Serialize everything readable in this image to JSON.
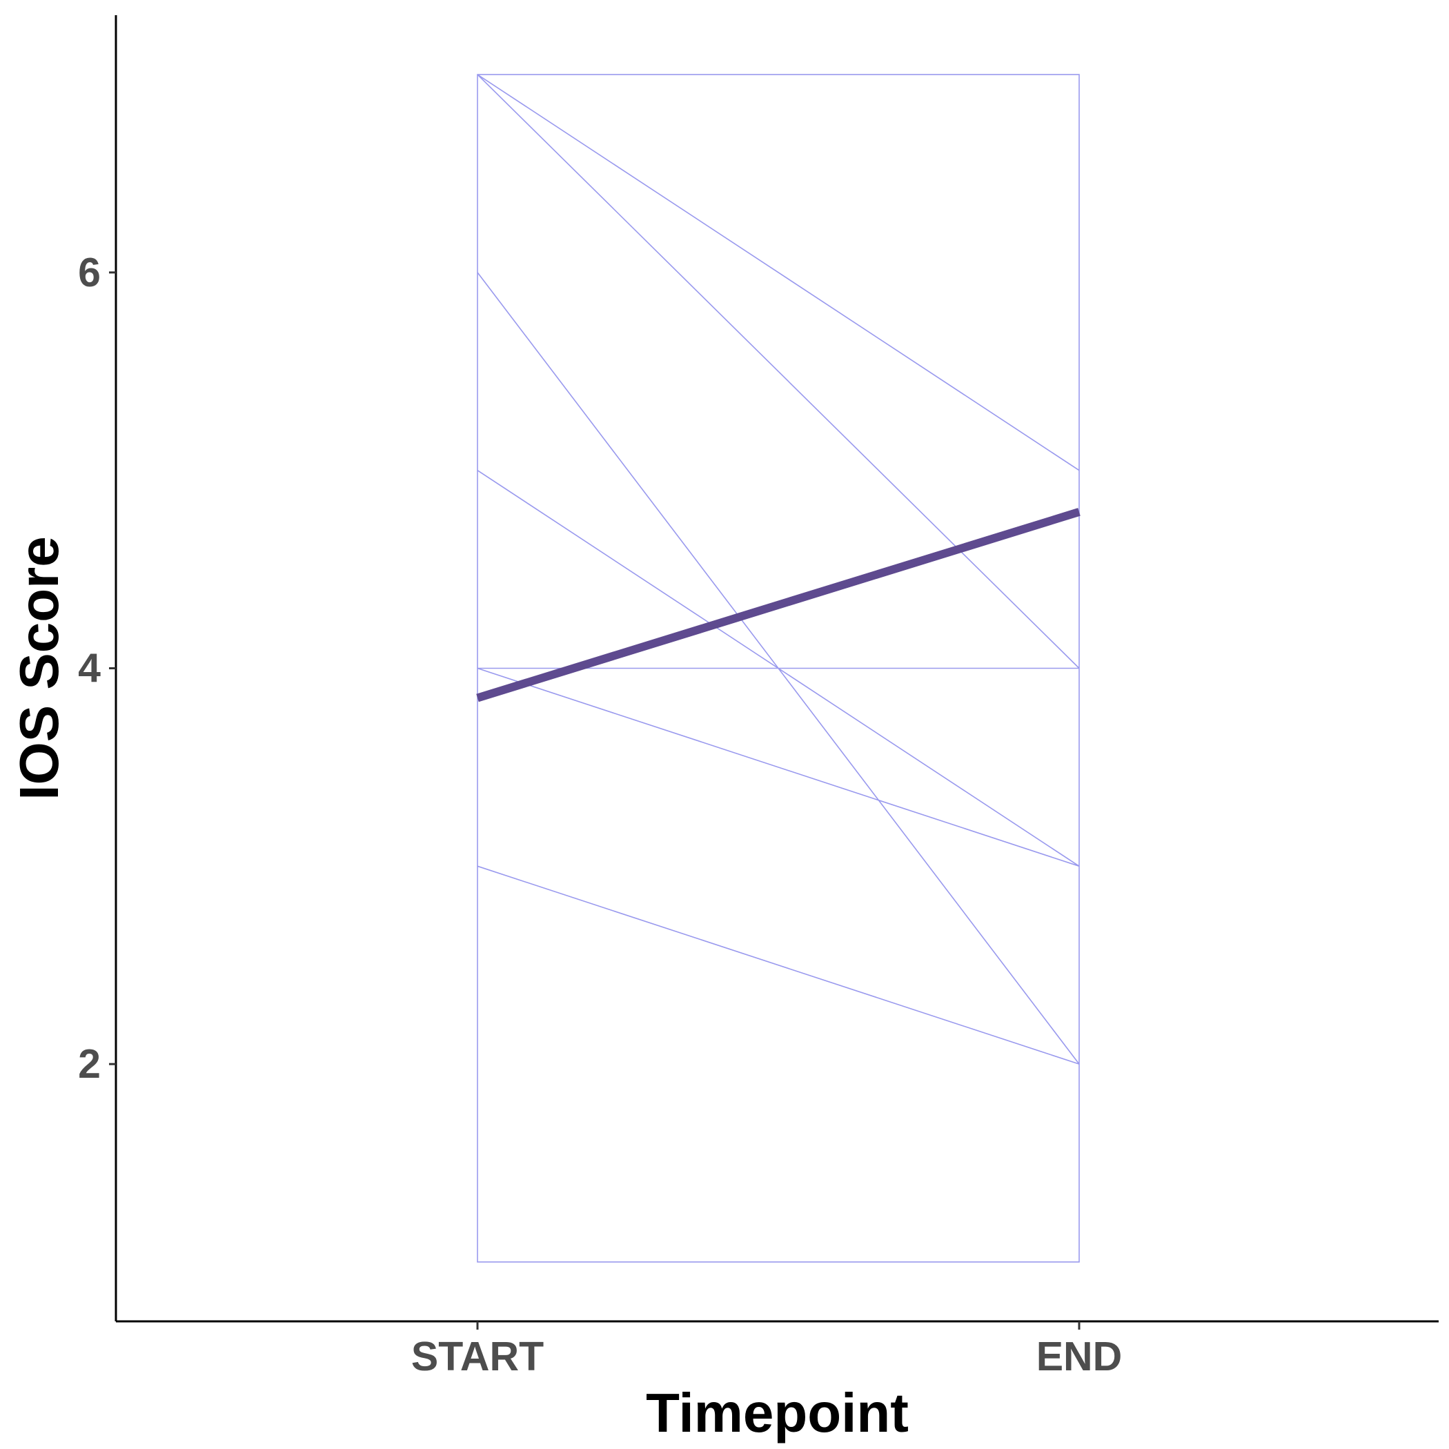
{
  "chart_data": {
    "type": "line",
    "xlabel": "Timepoint",
    "ylabel": "IOS Score",
    "categories": [
      "START",
      "END"
    ],
    "yticks": [
      2,
      4,
      6
    ],
    "ylim": [
      0.7,
      7.3
    ],
    "grid": false,
    "legend": "none",
    "individual_color": "#9999ee",
    "mean_color": "#5e4a8f",
    "band": {
      "ymin": 1,
      "ymax": 7
    },
    "individuals": [
      {
        "values": [
          7,
          5
        ]
      },
      {
        "values": [
          7,
          4
        ]
      },
      {
        "values": [
          6,
          2
        ]
      },
      {
        "values": [
          5,
          3
        ]
      },
      {
        "values": [
          4,
          4
        ]
      },
      {
        "values": [
          4,
          3
        ]
      },
      {
        "values": [
          3,
          2
        ]
      }
    ],
    "mean": {
      "values": [
        3.85,
        4.79
      ]
    }
  }
}
